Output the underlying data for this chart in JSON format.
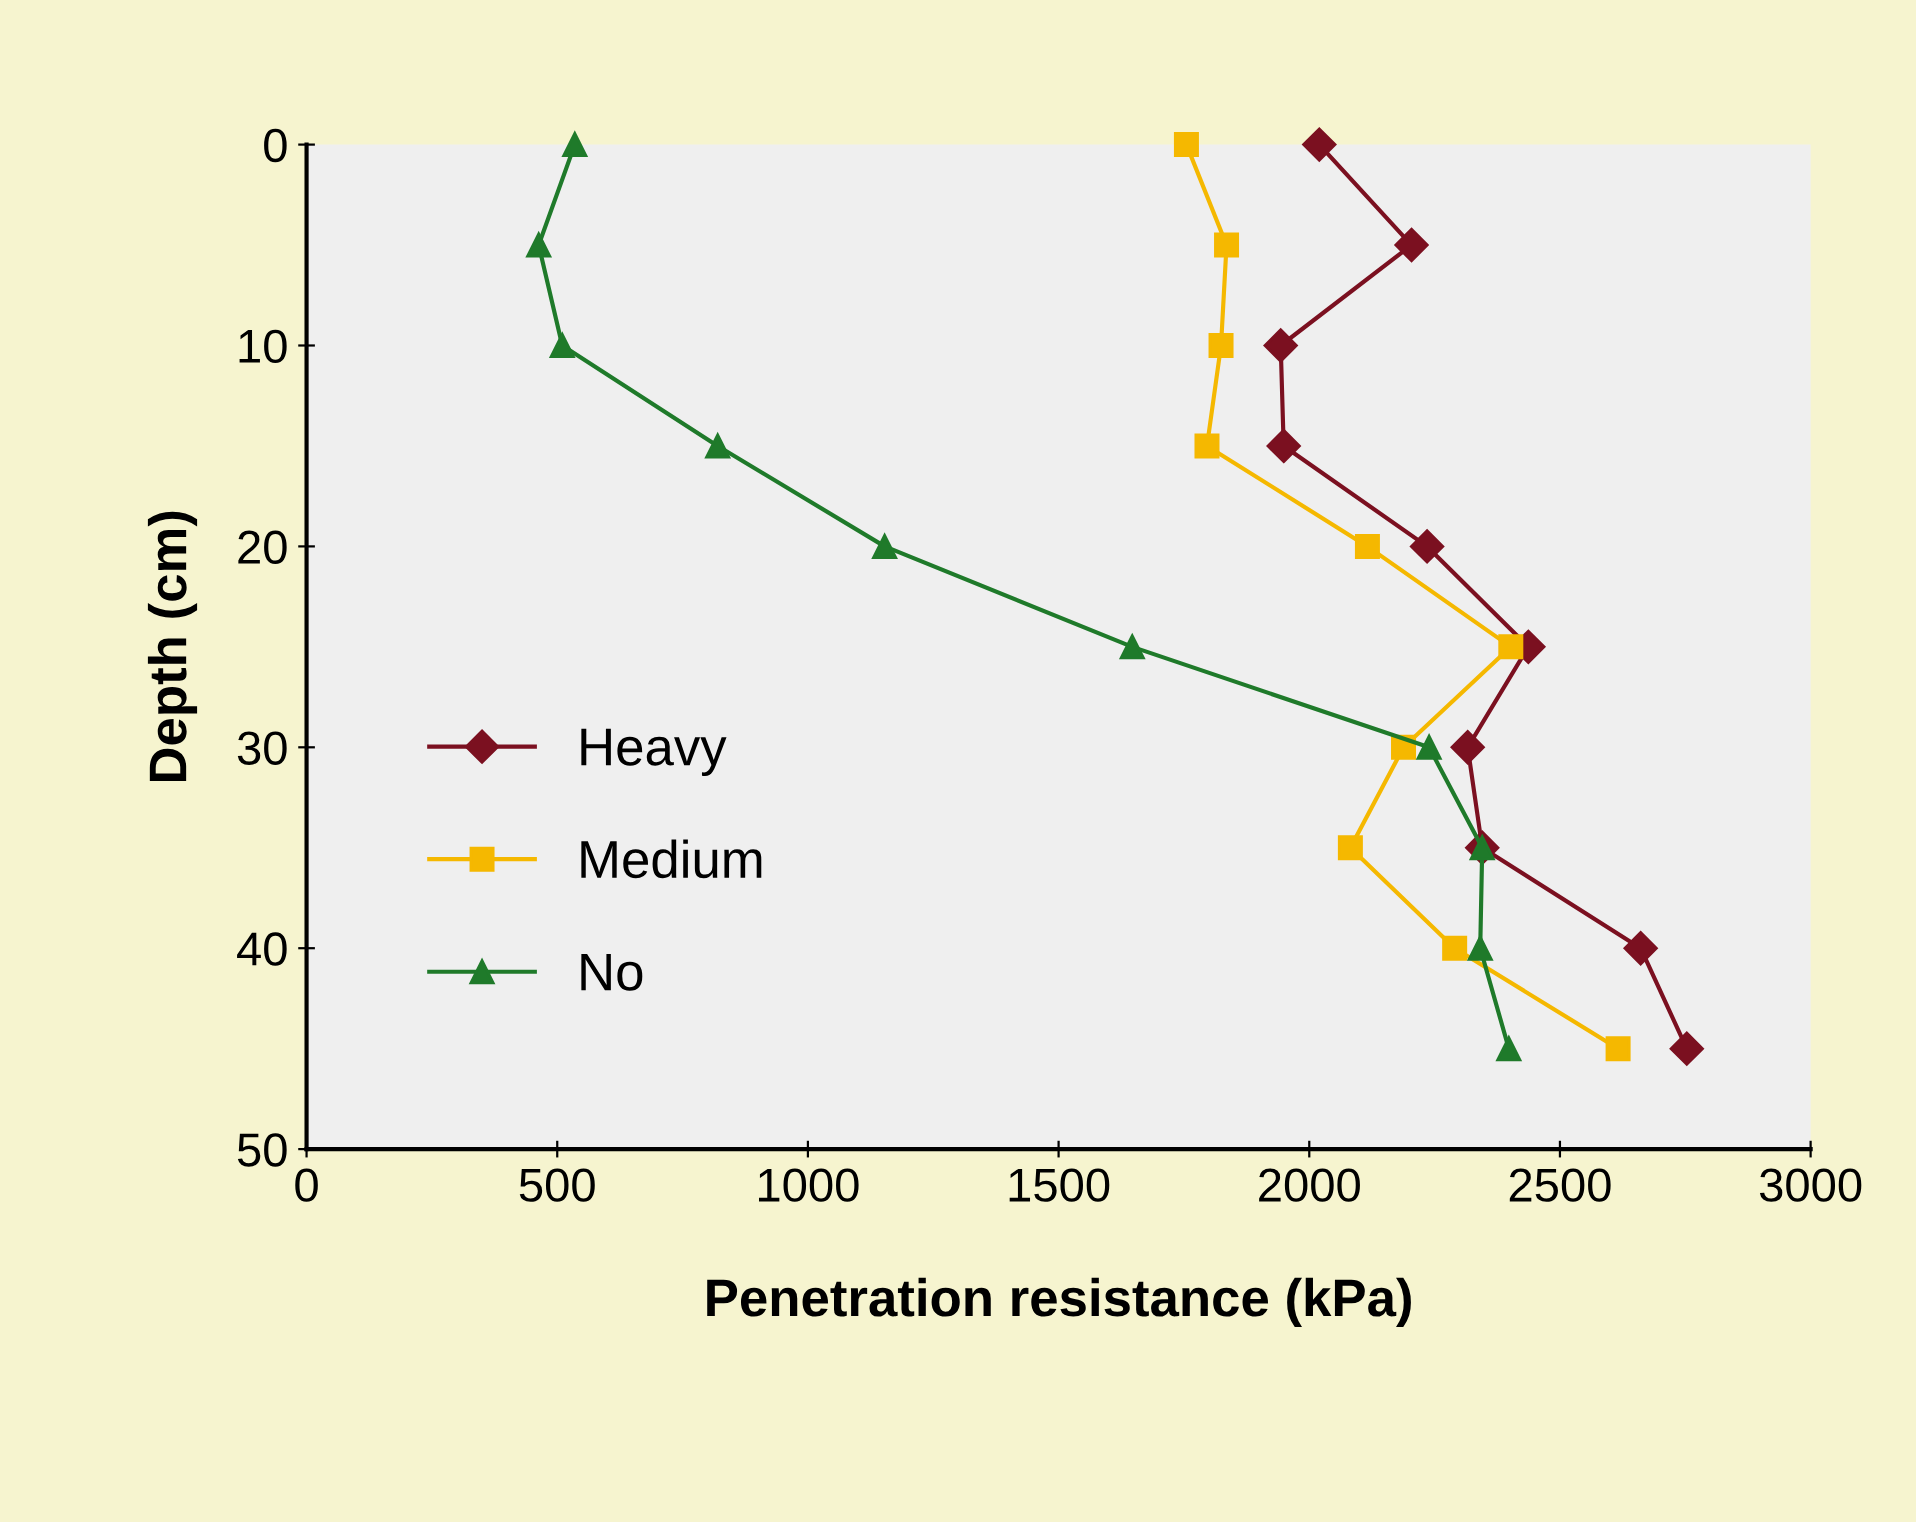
{
  "chart_data": {
    "type": "line",
    "xlabel": "Penetration resistance (kPa)",
    "ylabel": "Depth (cm)",
    "xlim": [
      0,
      3000
    ],
    "xticks": [
      0,
      500,
      1000,
      1500,
      2000,
      2500,
      3000
    ],
    "ylim": [
      50,
      0
    ],
    "yticks": [
      0,
      10,
      20,
      30,
      40,
      50
    ],
    "grid": false,
    "legend": "bottom left",
    "series": [
      {
        "name": "Heavy",
        "color": "#7b1020",
        "marker": "diamond",
        "x": [
          2020,
          2204,
          1943,
          1949,
          2235,
          2437,
          2316,
          2345,
          2661,
          2753
        ],
        "values": [
          0,
          5,
          10,
          15,
          20,
          25,
          30,
          35,
          40,
          45
        ]
      },
      {
        "name": "Medium",
        "color": "#f5b800",
        "marker": "square",
        "x": [
          1755,
          1835,
          1824,
          1796,
          2116,
          2402,
          2188,
          2082,
          2290,
          2616
        ],
        "values": [
          0,
          5,
          10,
          15,
          20,
          25,
          30,
          35,
          40,
          45
        ]
      },
      {
        "name": "No",
        "color": "#1f7a2a",
        "marker": "triangle",
        "x": [
          535,
          463,
          510,
          820,
          1153,
          1647,
          2239,
          2345,
          2341,
          2398
        ],
        "values": [
          0,
          5,
          10,
          15,
          20,
          25,
          30,
          35,
          40,
          45
        ]
      }
    ]
  }
}
